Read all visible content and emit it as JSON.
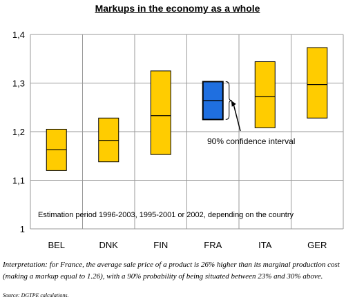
{
  "chart_data": {
    "type": "floating-bar",
    "title": "Markups in the economy as a whole",
    "categories": [
      "BEL",
      "DNK",
      "FIN",
      "FRA",
      "ITA",
      "GER"
    ],
    "series": [
      {
        "values": [
          {
            "low": 1.12,
            "mid": 1.163,
            "high": 1.205
          },
          {
            "low": 1.138,
            "mid": 1.182,
            "high": 1.228
          },
          {
            "low": 1.153,
            "mid": 1.233,
            "high": 1.325
          },
          {
            "low": 1.225,
            "mid": 1.264,
            "high": 1.303
          },
          {
            "low": 1.208,
            "mid": 1.272,
            "high": 1.344
          },
          {
            "low": 1.228,
            "mid": 1.297,
            "high": 1.373
          }
        ]
      }
    ],
    "highlight_category": "FRA",
    "colors": {
      "default": "#FFCC00",
      "highlight": "#1F6FE0",
      "edge": "#000000",
      "grid": "#999999"
    },
    "ylim": [
      1,
      1.4
    ],
    "yticks": [
      "1",
      "1,1",
      "1,2",
      "1,3",
      "1,4"
    ],
    "ytick_values": [
      1.0,
      1.1,
      1.2,
      1.3,
      1.4
    ],
    "grid": true,
    "annotations": {
      "confidence_label": "90% confidence interval",
      "note": "Estimation period 1996-2003, 1995-2001 or 2002, depending on the country"
    }
  },
  "caption": {
    "interpretation": "Interpretation: for France, the average sale price of a product is 26% higher than its marginal production cost (making a markup equal to 1.26), with a 90% probability of being situated between 23% and 30% above.",
    "source": "Source: DGTPE calculations."
  }
}
